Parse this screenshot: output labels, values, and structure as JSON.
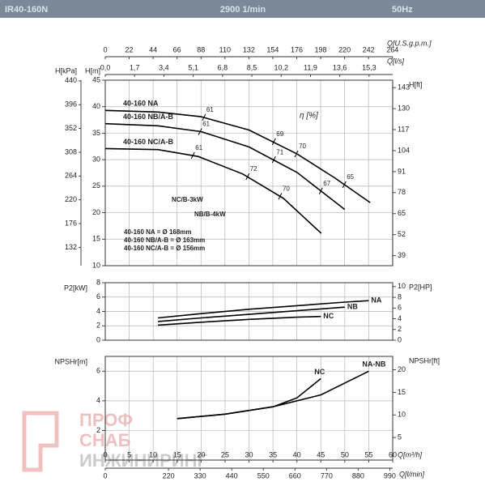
{
  "header": {
    "model": "IR40-160N",
    "speed": "2900 1/min",
    "frequency": "50Hz"
  },
  "watermark": [
    "ПРОФ",
    "СНАБ",
    "ИНЖИНИРИНГ"
  ],
  "chart_data": [
    {
      "type": "line",
      "xlim": [
        0,
        60
      ],
      "top_axes": [
        {
          "label": "Q[U.S.g.p.m.]",
          "xlim": [
            0,
            264.2
          ],
          "xticks": [
            0,
            22,
            44,
            66,
            88,
            110,
            132,
            154,
            176,
            198,
            220,
            242,
            264
          ]
        },
        {
          "label": "Q[l/s]",
          "xlim": [
            0,
            16.667
          ],
          "xticks": [
            {
              "value": 0,
              "label": "0,0"
            },
            {
              "value": 1.7,
              "label": "1,7"
            },
            {
              "value": 3.4,
              "label": "3,4"
            },
            {
              "value": 5.1,
              "label": "5,1"
            },
            {
              "value": 6.8,
              "label": "6,8"
            },
            {
              "value": 8.5,
              "label": "8,5"
            },
            {
              "value": 10.2,
              "label": "10,2"
            },
            {
              "value": 11.9,
              "label": "11,9"
            },
            {
              "value": 13.6,
              "label": "13,6"
            },
            {
              "value": 15.3,
              "label": "15,3"
            }
          ]
        }
      ],
      "ylabel": "H[m]",
      "ylim": [
        10,
        45
      ],
      "yticks": [
        10,
        15,
        20,
        25,
        30,
        35,
        40,
        45
      ],
      "y3label": "H[kPa]",
      "y3lim": [
        98.1,
        441.3
      ],
      "y3ticks": [
        132,
        176,
        220,
        264,
        308,
        352,
        396,
        440
      ],
      "y2label": "H[ft]",
      "y2lim": [
        32.8,
        147.6
      ],
      "y2ticks": [
        39,
        52,
        65,
        78,
        91,
        104,
        117,
        130,
        143
      ],
      "grid": true,
      "series": [
        {
          "name": "40-160 NA",
          "color": "#000000",
          "x": [
            0,
            11,
            20,
            30,
            40,
            48,
            55.3
          ],
          "values": [
            39.3,
            39,
            38.1,
            35.6,
            31.1,
            26.5,
            21.9
          ]
        },
        {
          "name": "40-160 NB/A-B",
          "color": "#000000",
          "x": [
            0,
            11,
            20,
            30,
            40,
            50
          ],
          "values": [
            36.8,
            36.4,
            35.3,
            32.4,
            27.6,
            20.6
          ]
        },
        {
          "name": "40-160 NC/A-B",
          "color": "#000000",
          "x": [
            0,
            11,
            19.4,
            28.7,
            37.2,
            45.1
          ],
          "values": [
            32.1,
            31.9,
            30.6,
            27.3,
            22.7,
            16.1
          ]
        }
      ],
      "efficiency_marks": [
        {
          "x": 20.6,
          "y": 38.0,
          "value": 61
        },
        {
          "x": 35.2,
          "y": 33.4,
          "value": 69
        },
        {
          "x": 39.9,
          "y": 31.1,
          "value": 70
        },
        {
          "x": 49.9,
          "y": 25.3,
          "value": 65
        },
        {
          "x": 19.8,
          "y": 35.3,
          "value": 61
        },
        {
          "x": 35.2,
          "y": 30.0,
          "value": 71
        },
        {
          "x": 45.0,
          "y": 24.1,
          "value": 67
        },
        {
          "x": 18.3,
          "y": 30.8,
          "value": 61
        },
        {
          "x": 29.7,
          "y": 26.8,
          "value": 72
        },
        {
          "x": 36.5,
          "y": 23.1,
          "value": 70
        }
      ],
      "annotations": [
        "η [%]",
        "NC/B-3kW",
        "NB/B-4kW",
        "40-160 NA = Ø 168mm",
        "40-160 NB/A-B = Ø 163mm",
        "40-160 NC/A-B = Ø 156mm"
      ]
    },
    {
      "type": "line",
      "xlim": [
        0,
        60
      ],
      "ylabel": "P2[kW]",
      "ylim": [
        0,
        8
      ],
      "yticks": [
        0,
        2,
        4,
        6,
        8
      ],
      "y2label": "P2[HP]",
      "y2lim": [
        0,
        10.73
      ],
      "y2ticks": [
        0,
        2,
        4,
        6,
        8,
        10
      ],
      "grid": true,
      "series": [
        {
          "name": "NA",
          "color": "#000000",
          "x": [
            11,
            20,
            30,
            40,
            50,
            55
          ],
          "values": [
            3.1,
            3.7,
            4.3,
            4.8,
            5.3,
            5.5
          ]
        },
        {
          "name": "NB",
          "color": "#000000",
          "x": [
            11,
            20,
            30,
            40,
            50
          ],
          "values": [
            2.6,
            3.1,
            3.6,
            4.1,
            4.6
          ]
        },
        {
          "name": "NC",
          "color": "#000000",
          "x": [
            11,
            20,
            30,
            40,
            45
          ],
          "values": [
            2.1,
            2.5,
            2.9,
            3.2,
            3.3
          ]
        }
      ]
    },
    {
      "type": "line",
      "xlabel": "Q[m³/h]",
      "xlim": [
        0,
        60
      ],
      "xticks": [
        0,
        5,
        10,
        15,
        20,
        25,
        30,
        35,
        40,
        45,
        50,
        55,
        60
      ],
      "x2label": "Q[l/min]",
      "x2lim": [
        0,
        1000
      ],
      "x2ticks": [
        0,
        220,
        330,
        440,
        550,
        660,
        770,
        880,
        990
      ],
      "ylabel": "NPSHr[m]",
      "ylim": [
        0,
        7
      ],
      "yticks": [
        2,
        4,
        6
      ],
      "y2label": "NPSHr[ft]",
      "y2lim": [
        0,
        22.97
      ],
      "y2ticks": [
        5,
        10,
        15,
        20
      ],
      "grid": true,
      "series": [
        {
          "name": "NA-NB",
          "color": "#000000",
          "x": [
            15,
            25,
            35,
            45,
            55
          ],
          "values": [
            2.8,
            3.1,
            3.6,
            4.4,
            6.0
          ]
        },
        {
          "name": "NC",
          "color": "#000000",
          "x": [
            15,
            25,
            35,
            40,
            45
          ],
          "values": [
            2.8,
            3.1,
            3.6,
            4.2,
            5.5
          ]
        }
      ]
    }
  ]
}
